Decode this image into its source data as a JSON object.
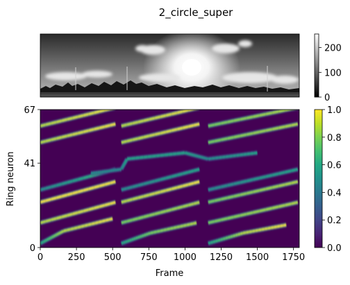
{
  "figure": {
    "title": "2_circle_super"
  },
  "panorama": {
    "colorbar": {
      "ticks": [
        "0",
        "100",
        "200"
      ],
      "tick_values": [
        0,
        100,
        200
      ],
      "range": [
        0,
        255
      ]
    }
  },
  "heatmap": {
    "xlabel": "Frame",
    "ylabel": "Ring neuron",
    "x_ticks": [
      "0",
      "250",
      "500",
      "750",
      "1000",
      "1250",
      "1500",
      "1750"
    ],
    "x_tick_values": [
      0,
      250,
      500,
      750,
      1000,
      1250,
      1500,
      1750
    ],
    "y_ticks": [
      "0",
      "41",
      "67"
    ],
    "y_tick_values": [
      0,
      41,
      67
    ],
    "colorbar_ticks": [
      "0.0",
      "0.2",
      "0.4",
      "0.6",
      "0.8",
      "1.0"
    ],
    "colorbar_tick_values": [
      0.0,
      0.2,
      0.4,
      0.6,
      0.8,
      1.0
    ],
    "colormap": "viridis"
  },
  "chart_data": [
    {
      "type": "image",
      "title": "2_circle_super",
      "colormap": "gray",
      "colorbar_range": [
        0,
        255
      ],
      "colorbar_ticks": [
        0,
        100,
        200
      ]
    },
    {
      "type": "heatmap",
      "xlabel": "Frame",
      "ylabel": "Ring neuron",
      "xlim": [
        0,
        1790
      ],
      "ylim": [
        0,
        67
      ],
      "x_ticks": [
        0,
        250,
        500,
        750,
        1000,
        1250,
        1500,
        1750
      ],
      "y_ticks": [
        0,
        41,
        67
      ],
      "colormap": "viridis",
      "color_range": [
        0.0,
        1.0
      ],
      "bands": [
        {
          "segments": [
            [
              0,
              2,
              0.6
            ],
            [
              160,
              8,
              0.9
            ],
            [
              500,
              14,
              1.0
            ],
            [
              560,
              2,
              0.6
            ],
            [
              760,
              7,
              0.8
            ],
            [
              1080,
              12,
              0.9
            ],
            [
              1160,
              2,
              0.6
            ],
            [
              1400,
              7,
              0.9
            ],
            [
              1700,
              11,
              1.0
            ]
          ]
        },
        {
          "segments": [
            [
              0,
              12,
              0.9
            ],
            [
              520,
              22,
              1.0
            ],
            [
              560,
              12,
              0.8
            ],
            [
              1100,
              22,
              0.9
            ],
            [
              1160,
              12,
              0.8
            ],
            [
              1780,
              22,
              0.9
            ]
          ]
        },
        {
          "segments": [
            [
              0,
              22,
              1.0
            ],
            [
              520,
              32,
              1.0
            ],
            [
              560,
              22,
              0.9
            ],
            [
              1100,
              32,
              1.0
            ],
            [
              1160,
              22,
              0.8
            ],
            [
              1780,
              32,
              0.9
            ]
          ]
        },
        {
          "segments": [
            [
              0,
              28,
              0.5
            ],
            [
              520,
              38,
              0.7
            ],
            [
              560,
              28,
              0.5
            ],
            [
              1100,
              38,
              0.6
            ],
            [
              1160,
              28,
              0.5
            ],
            [
              1780,
              38,
              0.6
            ]
          ]
        },
        {
          "segments": [
            [
              350,
              36,
              0.5
            ],
            [
              560,
              38,
              0.5
            ],
            [
              600,
              43,
              0.6
            ],
            [
              1000,
              46,
              0.6
            ],
            [
              1160,
              43,
              0.5
            ],
            [
              1500,
              46,
              0.6
            ]
          ]
        },
        {
          "segments": [
            [
              0,
              51,
              0.9
            ],
            [
              520,
              60,
              1.0
            ],
            [
              560,
              51,
              0.9
            ],
            [
              1100,
              60,
              1.0
            ],
            [
              1160,
              51,
              0.8
            ],
            [
              1780,
              60,
              0.9
            ]
          ]
        },
        {
          "segments": [
            [
              0,
              59,
              0.9
            ],
            [
              520,
              68,
              1.0
            ],
            [
              560,
              59,
              0.9
            ],
            [
              1100,
              68,
              1.0
            ],
            [
              1160,
              59,
              0.8
            ],
            [
              1780,
              68,
              0.9
            ]
          ]
        }
      ]
    }
  ]
}
